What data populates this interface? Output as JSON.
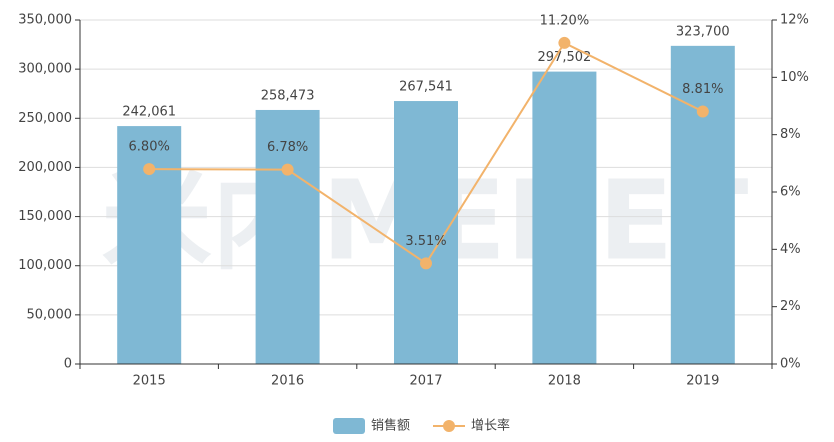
{
  "chart_data": {
    "type": "bar",
    "watermark": "米内MENET",
    "categories": [
      "2015",
      "2016",
      "2017",
      "2018",
      "2019"
    ],
    "series": [
      {
        "name": "销售额",
        "type": "bar",
        "color": "#7fb8d4",
        "values": [
          242061,
          258473,
          267541,
          297502,
          323700
        ],
        "value_labels": [
          "242,061",
          "258,473",
          "267,541",
          "297,502",
          "323,700"
        ]
      },
      {
        "name": "增长率",
        "type": "line",
        "axis": "y2",
        "color": "#f2b36b",
        "values": [
          6.8,
          6.78,
          3.51,
          11.2,
          8.81
        ],
        "value_labels": [
          "6.80%",
          "6.78%",
          "3.51%",
          "11.20%",
          "8.81%"
        ]
      }
    ],
    "ylim": [
      0,
      350000
    ],
    "yticks": [
      0,
      {
        "value": 50000,
        "label": "50,000"
      },
      {
        "value": 100000,
        "label": "100,000"
      },
      {
        "value": 150000,
        "label": "150,000"
      },
      {
        "value": 200000,
        "label": "200,000"
      },
      {
        "value": 250000,
        "label": "250,000"
      },
      {
        "value": 300000,
        "label": "300,000"
      },
      {
        "value": 350000,
        "label": "350,000"
      }
    ],
    "y2lim": [
      0,
      12
    ],
    "y2ticks": [
      {
        "value": 0,
        "label": "0%"
      },
      {
        "value": 2,
        "label": "2%"
      },
      {
        "value": 4,
        "label": "4%"
      },
      {
        "value": 6,
        "label": "6%"
      },
      {
        "value": 8,
        "label": "8%"
      },
      {
        "value": 10,
        "label": "10%"
      },
      {
        "value": 12,
        "label": "12%"
      }
    ],
    "grid": true,
    "legend": "bottom"
  }
}
